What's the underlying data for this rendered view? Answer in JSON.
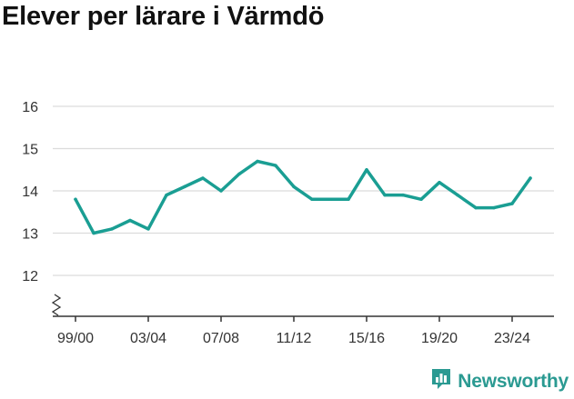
{
  "title": "Elever per lärare i Värmdö",
  "brand": {
    "name": "Newsworthy",
    "icon": "newsworthy-logo-icon"
  },
  "colors": {
    "line": "#1a9e93",
    "grid": "#dcdcdc",
    "axis": "#333333",
    "brand": "#2b9a92"
  },
  "chart_data": {
    "type": "line",
    "title": "Elever per lärare i Värmdö",
    "xlabel": "",
    "ylabel": "",
    "ylim": [
      11,
      16
    ],
    "y_ticks": [
      12,
      13,
      14,
      15,
      16
    ],
    "axis_break": true,
    "grid": true,
    "x": [
      "99/00",
      "00/01",
      "01/02",
      "02/03",
      "03/04",
      "04/05",
      "05/06",
      "06/07",
      "07/08",
      "08/09",
      "09/10",
      "10/11",
      "11/12",
      "12/13",
      "13/14",
      "14/15",
      "15/16",
      "16/17",
      "17/18",
      "18/19",
      "19/20",
      "20/21",
      "21/22",
      "22/23",
      "23/24",
      "24/25"
    ],
    "x_tick_labels": [
      "99/00",
      "03/04",
      "07/08",
      "11/12",
      "15/16",
      "19/20",
      "23/24"
    ],
    "series": [
      {
        "values": [
          13.8,
          13.0,
          13.1,
          13.3,
          13.1,
          13.9,
          14.1,
          14.3,
          14.0,
          14.4,
          14.7,
          14.6,
          14.1,
          13.8,
          13.8,
          13.8,
          14.5,
          13.9,
          13.9,
          13.8,
          14.2,
          13.9,
          13.6,
          13.6,
          13.7,
          14.3
        ]
      }
    ]
  }
}
